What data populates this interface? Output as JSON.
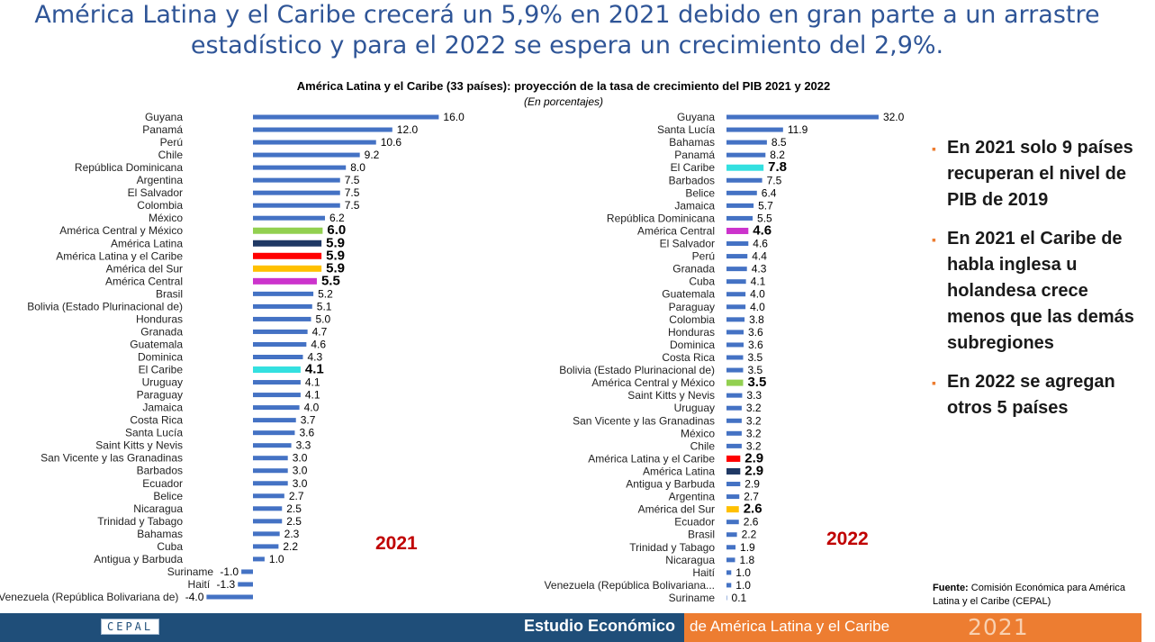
{
  "header": {
    "title_line1": "América Latina y el Caribe crecerá un 5,9% en 2021 debido en gran parte a un arrastre",
    "title_line2": "estadístico y para el 2022 se espera un crecimiento del 2,9%."
  },
  "figure": {
    "title": "América Latina y el Caribe (33 países): proyección de la tasa de crecimiento del PIB 2021 y 2022",
    "subtitle": "(En porcentajes)"
  },
  "chart_data": [
    {
      "type": "bar",
      "orientation": "horizontal",
      "year_label": "2021",
      "default_color": "#4472c4",
      "categories": [
        "Guyana",
        "Panamá",
        "Perú",
        "Chile",
        "República Dominicana",
        "Argentina",
        "El Salvador",
        "Colombia",
        "México",
        "América Central y México",
        "América Latina",
        "América Latina y el Caribe",
        "América del Sur",
        "América Central",
        "Brasil",
        "Bolivia (Estado Plurinacional de)",
        "Honduras",
        "Granada",
        "Guatemala",
        "Dominica",
        "El Caribe",
        "Uruguay",
        "Paraguay",
        "Jamaica",
        "Costa Rica",
        "Santa Lucía",
        "Saint Kitts y Nevis",
        "San Vicente y las Granadinas",
        "Barbados",
        "Ecuador",
        "Belice",
        "Nicaragua",
        "Trinidad y Tabago",
        "Bahamas",
        "Cuba",
        "Antigua y Barbuda",
        "Suriname",
        "Haití",
        "Venezuela (República Bolivariana de)"
      ],
      "values": [
        16.0,
        12.0,
        10.6,
        9.2,
        8.0,
        7.5,
        7.5,
        7.5,
        6.2,
        6.0,
        5.9,
        5.9,
        5.9,
        5.5,
        5.2,
        5.1,
        5.0,
        4.7,
        4.6,
        4.3,
        4.1,
        4.1,
        4.1,
        4.0,
        3.7,
        3.6,
        3.3,
        3.0,
        3.0,
        3.0,
        2.7,
        2.5,
        2.5,
        2.3,
        2.2,
        1.0,
        -1.0,
        -1.3,
        -4.0
      ],
      "labels": [
        "16.0",
        "12.0",
        "10.6",
        "9.2",
        "8.0",
        "7.5",
        "7.5",
        "7.5",
        "6.2",
        "6.0",
        "5.9",
        "5.9",
        "5.9",
        "5.5",
        "5.2",
        "5.1",
        "5.0",
        "4.7",
        "4.6",
        "4.3",
        "4.1",
        "4.1",
        "4.1",
        "4.0",
        "3.7",
        "3.6",
        "3.3",
        "3.0",
        "3.0",
        "3.0",
        "2.7",
        "2.5",
        "2.5",
        "2.3",
        "2.2",
        "1.0",
        "-1.0",
        "-1.3",
        "-4.0"
      ],
      "highlights": {
        "América Central y México": "#92d050",
        "América Latina": "#1f3864",
        "América Latina y el Caribe": "#ff0000",
        "América del Sur": "#ffc000",
        "América Central": "#cc33cc",
        "El Caribe": "#33e0e0"
      }
    },
    {
      "type": "bar",
      "orientation": "horizontal",
      "year_label": "2022",
      "default_color": "#4472c4",
      "categories": [
        "Guyana",
        "Santa Lucía",
        "Bahamas",
        "Panamá",
        "El Caribe",
        "Barbados",
        "Belice",
        "Jamaica",
        "República Dominicana",
        "América Central",
        "El Salvador",
        "Perú",
        "Granada",
        "Cuba",
        "Guatemala",
        "Paraguay",
        "Colombia",
        "Honduras",
        "Dominica",
        "Costa Rica",
        "Bolivia (Estado Plurinacional de)",
        "América Central y México",
        "Saint Kitts y Nevis",
        "Uruguay",
        "San Vicente y las Granadinas",
        "México",
        "Chile",
        "América Latina y el Caribe",
        "América Latina",
        "Antigua y Barbuda",
        "Argentina",
        "América del Sur",
        "Ecuador",
        "Brasil",
        "Trinidad y Tabago",
        "Nicaragua",
        "Haití",
        "Venezuela (República Bolivariana...",
        "Suriname"
      ],
      "values": [
        32.0,
        11.9,
        8.5,
        8.2,
        7.8,
        7.5,
        6.4,
        5.7,
        5.5,
        4.6,
        4.6,
        4.4,
        4.3,
        4.1,
        4.0,
        4.0,
        3.8,
        3.6,
        3.6,
        3.5,
        3.5,
        3.5,
        3.3,
        3.2,
        3.2,
        3.2,
        3.2,
        2.9,
        2.9,
        2.9,
        2.7,
        2.6,
        2.6,
        2.2,
        1.9,
        1.8,
        1.0,
        1.0,
        0.1
      ],
      "labels": [
        "32.0",
        "11.9",
        "8.5",
        "8.2",
        "7.8",
        "7.5",
        "6.4",
        "5.7",
        "5.5",
        "4.6",
        "4.6",
        "4.4",
        "4.3",
        "4.1",
        "4.0",
        "4.0",
        "3.8",
        "3.6",
        "3.6",
        "3.5",
        "3.5",
        "3.5",
        "3.3",
        "3.2",
        "3.2",
        "3.2",
        "3.2",
        "2.9",
        "2.9",
        "2.9",
        "2.7",
        "2.6",
        "2.6",
        "2.2",
        "1.9",
        "1.8",
        "1.0",
        "1.0",
        "0.1"
      ],
      "highlights": {
        "El Caribe": "#33e0e0",
        "América Central": "#cc33cc",
        "América Central y México": "#92d050",
        "América Latina y el Caribe": "#ff0000",
        "América Latina": "#1f3864",
        "América del Sur": "#ffc000"
      }
    }
  ],
  "sidebar": {
    "bullets": [
      "En 2021 solo 9 países recuperan el nivel de PIB de 2019",
      "En 2021 el Caribe de habla inglesa u holandesa crece menos que las demás subregiones",
      "En 2022 se agregan otros 5 países"
    ],
    "bullet_symbol": "▪"
  },
  "source": {
    "label": "Fuente:",
    "text": "Comisión Económica para América Latina y el Caribe (CEPAL)"
  },
  "footer": {
    "logo_text": "CEPAL",
    "publication": "Estudio Económico",
    "subtitle": "de América Latina y el Caribe",
    "year": "2021",
    "colors": {
      "blue": "#1f4e79",
      "orange": "#ed7d31"
    }
  }
}
